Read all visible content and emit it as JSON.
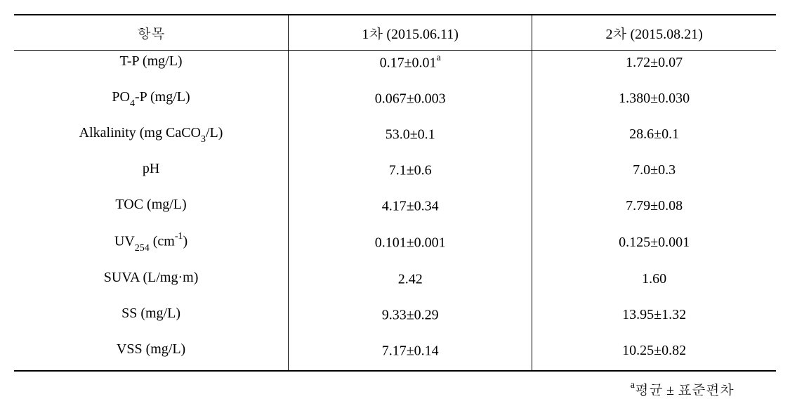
{
  "table": {
    "header": {
      "col1": "항목",
      "col2": "1차 (2015.06.11)",
      "col3": "2차 (2015.08.21)"
    },
    "rows": [
      {
        "label_pre": "T-P (mg/L)",
        "label_sub": "",
        "label_post": "",
        "col2_pre": "0.17±0.01",
        "col2_sup": "a",
        "col3": "1.72±0.07"
      },
      {
        "label_pre": "PO",
        "label_sub": "4",
        "label_post": "-P (mg/L)",
        "col2_pre": "0.067±0.003",
        "col2_sup": "",
        "col3": "1.380±0.030"
      },
      {
        "label_pre": "Alkalinity (mg CaCO",
        "label_sub": "3",
        "label_post": "/L)",
        "col2_pre": "53.0±0.1",
        "col2_sup": "",
        "col3": "28.6±0.1"
      },
      {
        "label_pre": "pH",
        "label_sub": "",
        "label_post": "",
        "col2_pre": "7.1±0.6",
        "col2_sup": "",
        "col3": "7.0±0.3"
      },
      {
        "label_pre": "TOC (mg/L)",
        "label_sub": "",
        "label_post": "",
        "col2_pre": "4.17±0.34",
        "col2_sup": "",
        "col3": "7.79±0.08"
      },
      {
        "label_pre": "UV",
        "label_sub": "254",
        "label_post": " (cm",
        "label_sup": "-1",
        "label_end": ")",
        "col2_pre": "0.101±0.001",
        "col2_sup": "",
        "col3": "0.125±0.001"
      },
      {
        "label_pre": "SUVA (L/mg·m)",
        "label_sub": "",
        "label_post": "",
        "col2_pre": "2.42",
        "col2_sup": "",
        "col3": "1.60"
      },
      {
        "label_pre": "SS (mg/L)",
        "label_sub": "",
        "label_post": "",
        "col2_pre": "9.33±0.29",
        "col2_sup": "",
        "col3": "13.95±1.32"
      },
      {
        "label_pre": "VSS (mg/L)",
        "label_sub": "",
        "label_post": "",
        "col2_pre": "7.17±0.14",
        "col2_sup": "",
        "col3": "10.25±0.82"
      }
    ],
    "footnote_sup": "a",
    "footnote_text": "평균 ± 표준편차"
  },
  "styling": {
    "border_color": "#000000",
    "background_color": "#ffffff",
    "text_color": "#000000",
    "font_size_body": 20,
    "font_size_sub": 14,
    "top_border_width": 2,
    "header_border_width": 1,
    "bottom_border_width": 2,
    "column_border_width": 1
  }
}
